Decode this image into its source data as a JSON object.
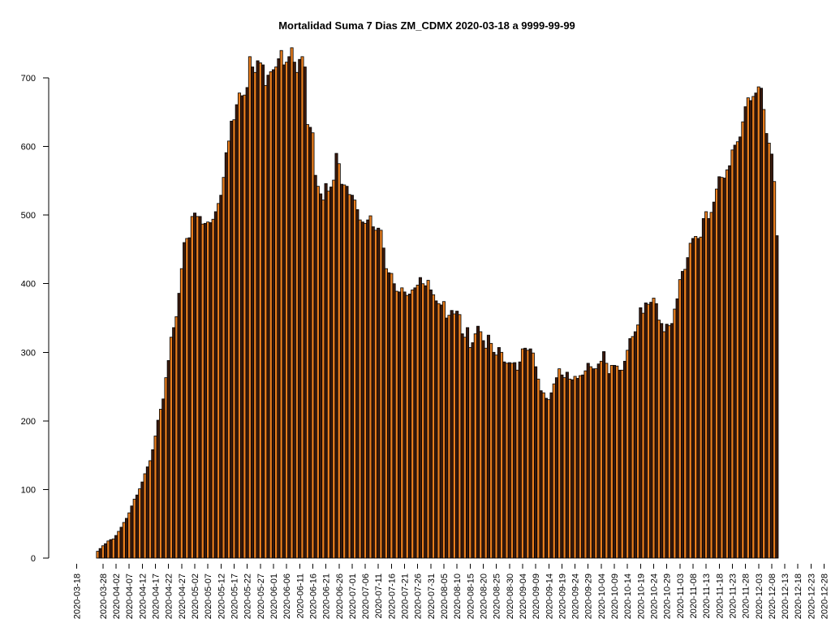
{
  "chart_data": {
    "type": "bar",
    "title": "Mortalidad Suma 7 Dias ZM_CDMX 2020-03-18 a 9999-99-99",
    "xlabel": "",
    "ylabel": "",
    "ylim": [
      0,
      745
    ],
    "y_ticks": [
      0,
      100,
      200,
      300,
      400,
      500,
      600,
      700
    ],
    "x_start": "2020-03-18",
    "x_tick_labels": [
      "2020-03-18",
      "2020-03-28",
      "2020-04-02",
      "2020-04-07",
      "2020-04-12",
      "2020-04-17",
      "2020-04-22",
      "2020-04-27",
      "2020-05-02",
      "2020-05-07",
      "2020-05-12",
      "2020-05-17",
      "2020-05-22",
      "2020-05-27",
      "2020-06-01",
      "2020-06-06",
      "2020-06-11",
      "2020-06-16",
      "2020-06-21",
      "2020-06-26",
      "2020-07-01",
      "2020-07-06",
      "2020-07-11",
      "2020-07-16",
      "2020-07-21",
      "2020-07-26",
      "2020-07-31",
      "2020-08-05",
      "2020-08-10",
      "2020-08-15",
      "2020-08-20",
      "2020-08-25",
      "2020-08-30",
      "2020-09-04",
      "2020-09-09",
      "2020-09-14",
      "2020-09-19",
      "2020-09-24",
      "2020-09-29",
      "2020-10-04",
      "2020-10-09",
      "2020-10-14",
      "2020-10-19",
      "2020-10-24",
      "2020-10-29",
      "2020-11-03",
      "2020-11-08",
      "2020-11-13",
      "2020-11-18",
      "2020-11-23",
      "2020-11-28",
      "2020-12-03",
      "2020-12-08",
      "2020-12-13",
      "2020-12-18",
      "2020-12-23",
      "2020-12-28"
    ],
    "bar_colors": [
      "#e87d1e",
      "#3a1a0e"
    ],
    "values": [
      0,
      0,
      0,
      0,
      0,
      0,
      0,
      0,
      10,
      14,
      18,
      21,
      25,
      27,
      28,
      33,
      39,
      45,
      52,
      58,
      66,
      76,
      86,
      92,
      101,
      111,
      123,
      133,
      142,
      158,
      178,
      201,
      217,
      232,
      263,
      288,
      322,
      336,
      352,
      386,
      422,
      460,
      466,
      467,
      498,
      503,
      498,
      498,
      487,
      488,
      490,
      489,
      494,
      505,
      517,
      529,
      555,
      591,
      608,
      637,
      639,
      661,
      678,
      674,
      675,
      686,
      731,
      716,
      708,
      725,
      722,
      719,
      689,
      704,
      709,
      712,
      716,
      728,
      740,
      719,
      723,
      731,
      744,
      723,
      708,
      727,
      731,
      716,
      632,
      628,
      620,
      558,
      542,
      531,
      522,
      546,
      535,
      541,
      551,
      590,
      575,
      545,
      544,
      542,
      530,
      529,
      522,
      508,
      493,
      490,
      488,
      493,
      499,
      483,
      478,
      481,
      478,
      452,
      422,
      416,
      415,
      400,
      389,
      388,
      394,
      388,
      383,
      385,
      391,
      394,
      398,
      409,
      400,
      397,
      405,
      391,
      384,
      375,
      371,
      369,
      374,
      350,
      354,
      361,
      356,
      360,
      355,
      327,
      322,
      336,
      307,
      314,
      327,
      338,
      330,
      317,
      306,
      325,
      313,
      300,
      296,
      307,
      300,
      286,
      284,
      285,
      284,
      285,
      274,
      286,
      305,
      306,
      303,
      305,
      299,
      279,
      261,
      244,
      241,
      233,
      231,
      241,
      254,
      263,
      276,
      267,
      263,
      271,
      261,
      260,
      265,
      262,
      266,
      267,
      273,
      284,
      279,
      276,
      276,
      283,
      287,
      301,
      284,
      269,
      281,
      281,
      280,
      274,
      274,
      287,
      303,
      320,
      323,
      330,
      340,
      365,
      357,
      372,
      370,
      373,
      379,
      371,
      347,
      342,
      330,
      341,
      339,
      342,
      363,
      378,
      406,
      418,
      421,
      438,
      459,
      466,
      469,
      466,
      468,
      495,
      505,
      495,
      504,
      519,
      538,
      556,
      555,
      554,
      566,
      572,
      595,
      602,
      607,
      614,
      636,
      658,
      671,
      667,
      673,
      678,
      687,
      685,
      654,
      619,
      605,
      589,
      549,
      470
    ]
  }
}
